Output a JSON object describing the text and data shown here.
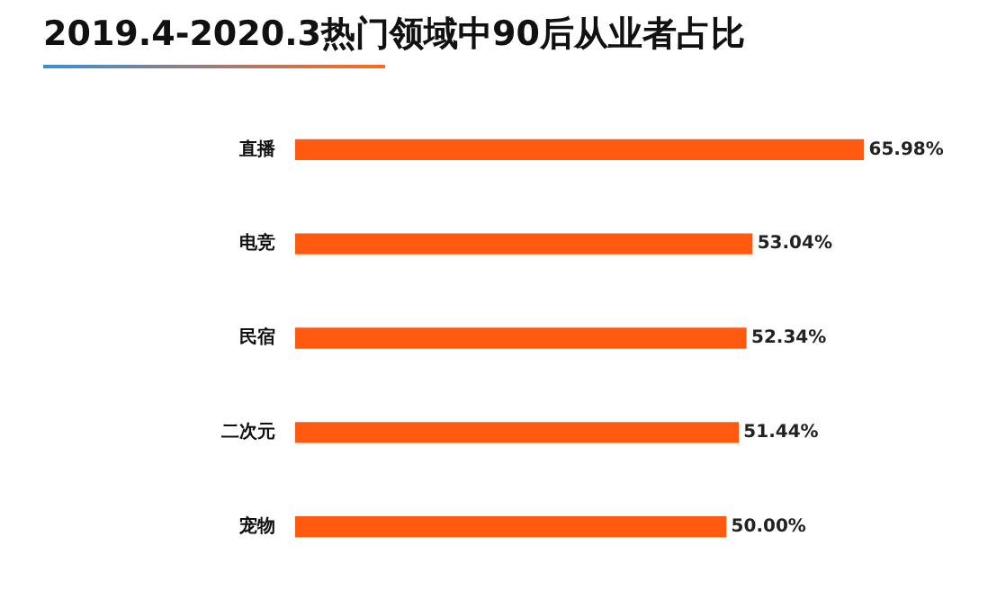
{
  "chart_data": {
    "type": "bar",
    "orientation": "horizontal",
    "title": "2019.4-2020.3热门领域中90后从业者占比",
    "categories": [
      "直播",
      "电竞",
      "民宿",
      "二次元",
      "宠物"
    ],
    "values": [
      65.98,
      53.04,
      52.34,
      51.44,
      50.0
    ],
    "value_labels": [
      "65.98%",
      "53.04%",
      "52.34%",
      "51.44%",
      "50.00%"
    ],
    "color": "#ff5a0f",
    "legend": false
  }
}
